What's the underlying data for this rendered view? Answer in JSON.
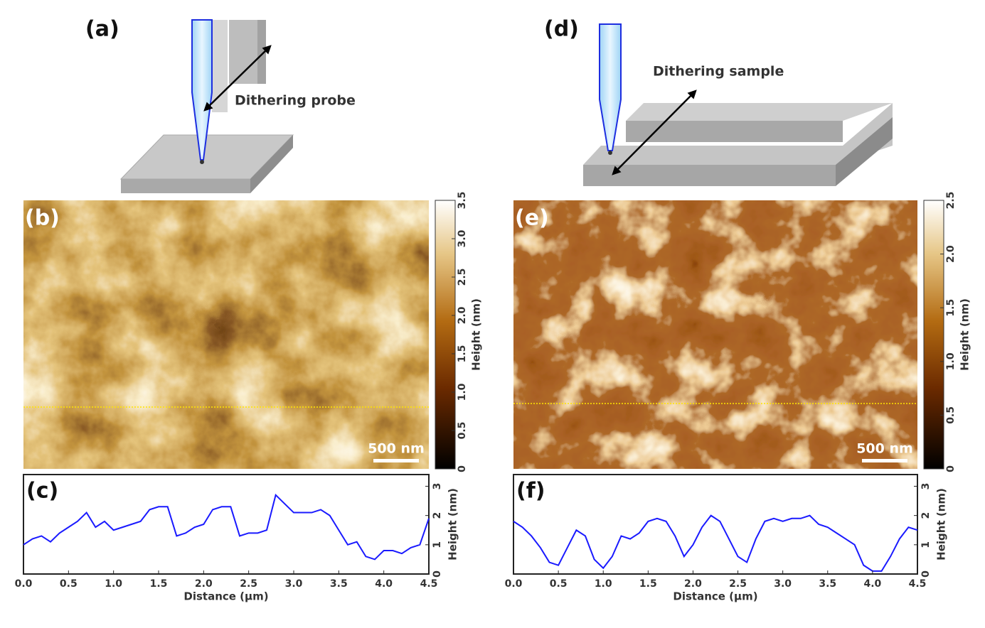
{
  "panel_labels": {
    "a": "(a)",
    "d": "(d)"
  },
  "diagrams": {
    "probe": "Dithering probe",
    "sample": "Dithering sample"
  },
  "afm_images": [
    {
      "label": "(b)",
      "scale_bar": "500 nm",
      "colorbar": {
        "title": "Height (nm)",
        "lim": [
          0,
          3.5
        ],
        "ticks": [
          0,
          0.5,
          {
            "value": 1,
            "label": "1.0"
          },
          1.5,
          {
            "value": 2,
            "label": "2.0"
          },
          2.5,
          {
            "value": 3,
            "label": "3.0"
          },
          3.5
        ]
      }
    },
    {
      "label": "(e)",
      "scale_bar": "500 nm",
      "colorbar": {
        "title": "Height (nm)",
        "lim": [
          0,
          2.5
        ],
        "ticks": [
          0,
          0.5,
          {
            "value": 1,
            "label": "1.0"
          },
          1.5,
          {
            "value": 2,
            "label": "2.0"
          },
          2.5
        ]
      }
    }
  ],
  "chart_data": [
    {
      "type": "line",
      "label": "(c)",
      "xlabel": "Distance (µm)",
      "ylabel": "Height (nm)",
      "color": "#1a1aff",
      "x": [
        0,
        0.1,
        0.2,
        0.3,
        0.4,
        0.5,
        0.6,
        0.7,
        0.8,
        0.9,
        1.0,
        1.1,
        1.2,
        1.3,
        1.4,
        1.5,
        1.6,
        1.7,
        1.8,
        1.9,
        2.0,
        2.1,
        2.2,
        2.3,
        2.4,
        2.5,
        2.6,
        2.7,
        2.8,
        2.9,
        3.0,
        3.1,
        3.2,
        3.3,
        3.4,
        3.5,
        3.6,
        3.7,
        3.8,
        3.9,
        4.0,
        4.1,
        4.2,
        4.3,
        4.4,
        4.5
      ],
      "values": [
        1.0,
        1.2,
        1.3,
        1.1,
        1.4,
        1.6,
        1.8,
        2.1,
        1.6,
        1.8,
        1.5,
        1.6,
        1.7,
        1.8,
        2.2,
        2.3,
        2.3,
        1.3,
        1.4,
        1.6,
        1.7,
        2.2,
        2.3,
        2.3,
        1.3,
        1.4,
        1.4,
        1.5,
        2.7,
        2.4,
        2.1,
        2.1,
        2.1,
        2.2,
        2.0,
        1.5,
        1.0,
        1.1,
        0.6,
        0.5,
        0.8,
        0.8,
        0.7,
        0.9,
        1.0,
        1.9
      ],
      "xlim": [
        0,
        4.5
      ],
      "ylim": [
        0,
        3.4
      ],
      "xticks": [
        {
          "value": 0,
          "label": "0.0"
        },
        0.5,
        {
          "value": 1,
          "label": "1.0"
        },
        1.5,
        {
          "value": 2,
          "label": "2.0"
        },
        2.5,
        {
          "value": 3,
          "label": "3.0"
        },
        3.5,
        {
          "value": 4,
          "label": "4.0"
        },
        4.5
      ],
      "yticks": [
        0,
        1,
        2,
        3
      ]
    },
    {
      "type": "line",
      "label": "(f)",
      "xlabel": "Distance (µm)",
      "ylabel": "Height (nm)",
      "color": "#1a1aff",
      "x": [
        0,
        0.1,
        0.2,
        0.3,
        0.4,
        0.5,
        0.6,
        0.7,
        0.8,
        0.9,
        1.0,
        1.1,
        1.2,
        1.3,
        1.4,
        1.5,
        1.6,
        1.7,
        1.8,
        1.9,
        2.0,
        2.1,
        2.2,
        2.3,
        2.4,
        2.5,
        2.6,
        2.7,
        2.8,
        2.9,
        3.0,
        3.1,
        3.2,
        3.3,
        3.4,
        3.5,
        3.6,
        3.7,
        3.8,
        3.9,
        4.0,
        4.1,
        4.2,
        4.3,
        4.4,
        4.5
      ],
      "values": [
        1.8,
        1.6,
        1.3,
        0.9,
        0.4,
        0.3,
        0.9,
        1.5,
        1.3,
        0.5,
        0.2,
        0.6,
        1.3,
        1.2,
        1.4,
        1.8,
        1.9,
        1.8,
        1.3,
        0.6,
        1.0,
        1.6,
        2.0,
        1.8,
        1.2,
        0.6,
        0.4,
        1.2,
        1.8,
        1.9,
        1.8,
        1.9,
        1.9,
        2.0,
        1.7,
        1.6,
        1.4,
        1.2,
        1.0,
        0.3,
        0.1,
        0.1,
        0.6,
        1.2,
        1.6,
        1.5
      ],
      "xlim": [
        0,
        4.5
      ],
      "ylim": [
        0,
        3.4
      ],
      "xticks": [
        {
          "value": 0,
          "label": "0.0"
        },
        0.5,
        {
          "value": 1,
          "label": "1.0"
        },
        1.5,
        {
          "value": 2,
          "label": "2.0"
        },
        2.5,
        {
          "value": 3,
          "label": "3.0"
        },
        3.5,
        {
          "value": 4,
          "label": "4.0"
        },
        4.5
      ],
      "yticks": [
        0,
        1,
        2,
        3
      ]
    }
  ]
}
